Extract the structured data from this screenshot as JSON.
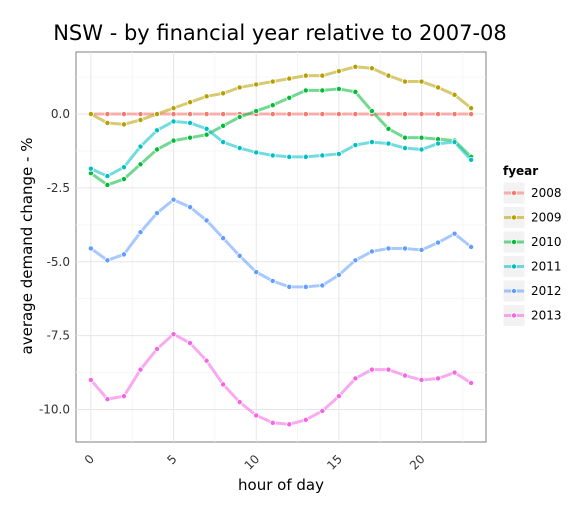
{
  "chart_data": {
    "type": "line",
    "title": "NSW - by financial year relative to 2007-08",
    "xlabel": "hour of day",
    "ylabel": "average demand change - %",
    "xlim": [
      -0.9,
      23.9
    ],
    "ylim": [
      -11.1,
      2.1
    ],
    "x_ticks": [
      0,
      5,
      10,
      15,
      20
    ],
    "x_tick_labels": [
      "0",
      "5",
      "10",
      "15",
      "20"
    ],
    "y_ticks": [
      0.0,
      -2.5,
      -5.0,
      -7.5,
      -10.0
    ],
    "y_tick_labels": [
      "0.0",
      "-2.5",
      "-5.0",
      "-7.5",
      "-10.0"
    ],
    "grid": true,
    "legend_title": "fyear",
    "legend_position": "right",
    "x": [
      0,
      1,
      2,
      3,
      4,
      5,
      6,
      7,
      8,
      9,
      10,
      11,
      12,
      13,
      14,
      15,
      16,
      17,
      18,
      19,
      20,
      21,
      22,
      23
    ],
    "series": [
      {
        "name": "2008",
        "color": "#F8766D",
        "values": [
          0,
          0,
          0,
          0,
          0,
          0,
          0,
          0,
          0,
          0,
          0,
          0,
          0,
          0,
          0,
          0,
          0,
          0,
          0,
          0,
          0,
          0,
          0,
          0
        ]
      },
      {
        "name": "2009",
        "color": "#B79F00",
        "values": [
          0,
          -0.3,
          -0.35,
          -0.2,
          0,
          0.2,
          0.4,
          0.6,
          0.7,
          0.9,
          1.0,
          1.1,
          1.2,
          1.3,
          1.3,
          1.45,
          1.6,
          1.55,
          1.3,
          1.1,
          1.1,
          0.9,
          0.65,
          0.2
        ]
      },
      {
        "name": "2010",
        "color": "#00BA38",
        "values": [
          -2.0,
          -2.4,
          -2.2,
          -1.7,
          -1.2,
          -0.9,
          -0.8,
          -0.7,
          -0.4,
          -0.1,
          0.1,
          0.3,
          0.55,
          0.8,
          0.8,
          0.85,
          0.75,
          0.1,
          -0.5,
          -0.8,
          -0.8,
          -0.85,
          -0.9,
          -1.45
        ]
      },
      {
        "name": "2011",
        "color": "#00BFC4",
        "values": [
          -1.85,
          -2.1,
          -1.8,
          -1.1,
          -0.55,
          -0.25,
          -0.3,
          -0.5,
          -0.95,
          -1.15,
          -1.3,
          -1.4,
          -1.45,
          -1.45,
          -1.4,
          -1.35,
          -1.05,
          -0.95,
          -1.0,
          -1.15,
          -1.2,
          -1.0,
          -0.95,
          -1.55
        ]
      },
      {
        "name": "2012",
        "color": "#619CFF",
        "values": [
          -4.55,
          -4.95,
          -4.75,
          -4.0,
          -3.35,
          -2.9,
          -3.15,
          -3.6,
          -4.2,
          -4.8,
          -5.35,
          -5.65,
          -5.85,
          -5.85,
          -5.8,
          -5.45,
          -4.95,
          -4.65,
          -4.55,
          -4.55,
          -4.6,
          -4.35,
          -4.05,
          -4.5
        ]
      },
      {
        "name": "2013",
        "color": "#F564E3",
        "values": [
          -9.0,
          -9.65,
          -9.55,
          -8.65,
          -7.95,
          -7.45,
          -7.75,
          -8.35,
          -9.15,
          -9.75,
          -10.2,
          -10.45,
          -10.5,
          -10.35,
          -10.05,
          -9.55,
          -8.95,
          -8.65,
          -8.65,
          -8.85,
          -9.0,
          -8.95,
          -8.75,
          -9.1
        ]
      }
    ]
  }
}
